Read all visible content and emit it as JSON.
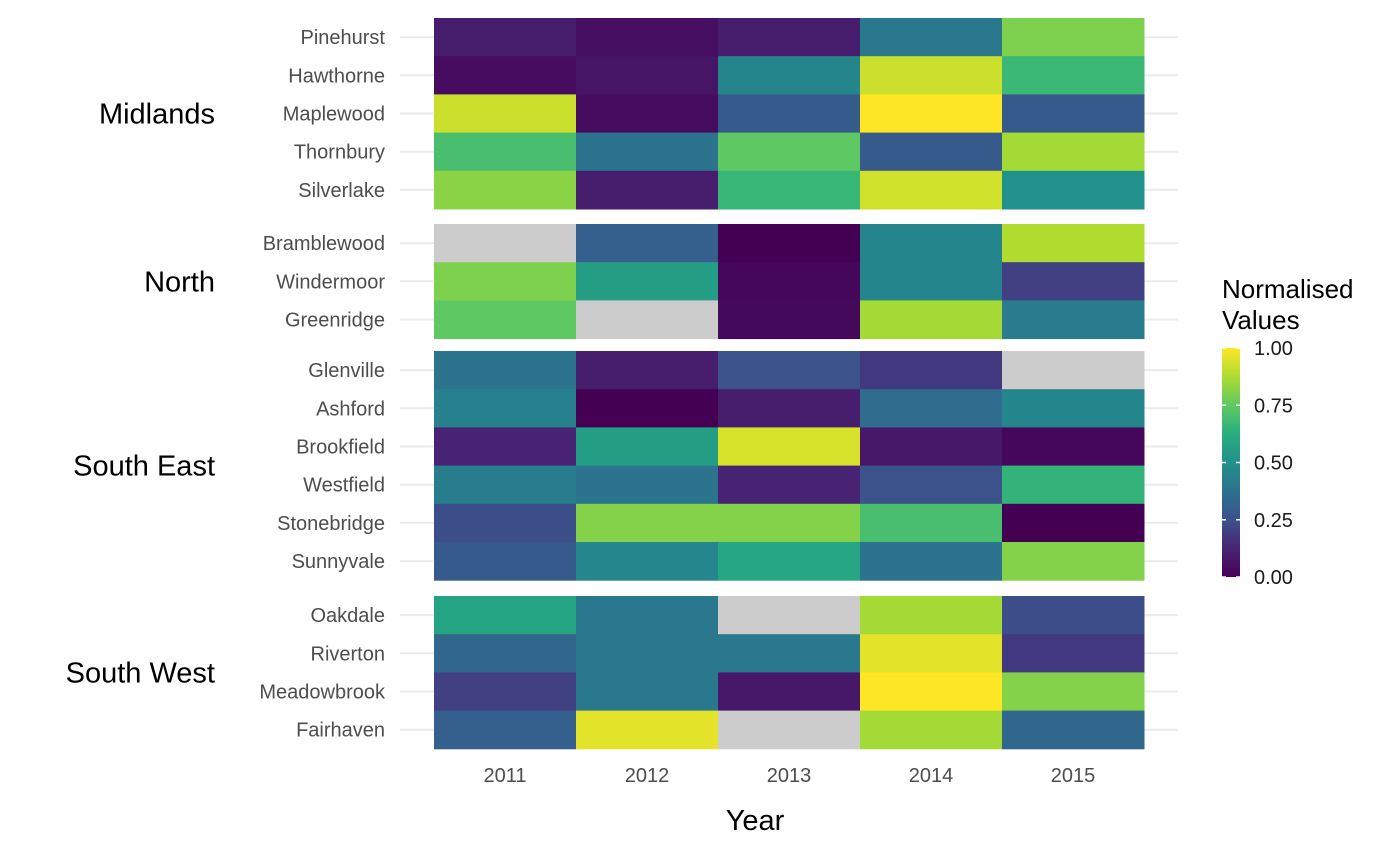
{
  "chart_data": {
    "type": "heatmap",
    "x": [
      "2011",
      "2012",
      "2013",
      "2014",
      "2015"
    ],
    "xlabel": "Year",
    "ylabel": "",
    "colorscale": "viridis",
    "na_color": "#cccccc",
    "legend": {
      "title_lines": [
        "Normalised",
        "Values"
      ],
      "range": [
        0,
        1
      ],
      "ticks": [
        "1.00",
        "0.75",
        "0.50",
        "0.25",
        "0.00"
      ],
      "tick_values": [
        1.0,
        0.75,
        0.5,
        0.25,
        0.0
      ],
      "position": "right"
    },
    "groups": [
      {
        "name": "Midlands",
        "rows": [
          {
            "label": "Pinehurst",
            "values": [
              0.1,
              0.05,
              0.1,
              0.4,
              0.8
            ]
          },
          {
            "label": "Hawthorne",
            "values": [
              0.04,
              0.07,
              0.45,
              0.92,
              0.67
            ]
          },
          {
            "label": "Maplewood",
            "values": [
              0.92,
              0.04,
              0.28,
              1.0,
              0.28
            ]
          },
          {
            "label": "Thornbury",
            "values": [
              0.7,
              0.38,
              0.75,
              0.28,
              0.86
            ]
          },
          {
            "label": "Silverlake",
            "values": [
              0.82,
              0.1,
              0.66,
              0.93,
              0.5
            ]
          }
        ]
      },
      {
        "name": "North",
        "rows": [
          {
            "label": "Bramblewood",
            "values": [
              null,
              0.3,
              0.0,
              0.45,
              0.88
            ]
          },
          {
            "label": "Windermoor",
            "values": [
              0.8,
              0.56,
              0.02,
              0.45,
              0.2
            ]
          },
          {
            "label": "Greenridge",
            "values": [
              0.75,
              null,
              0.03,
              0.86,
              0.41
            ]
          }
        ]
      },
      {
        "name": "South East",
        "rows": [
          {
            "label": "Glenville",
            "values": [
              0.38,
              0.1,
              0.25,
              0.18,
              null
            ]
          },
          {
            "label": "Ashford",
            "values": [
              0.43,
              0.0,
              0.1,
              0.35,
              0.45
            ]
          },
          {
            "label": "Brookfield",
            "values": [
              0.12,
              0.56,
              0.94,
              0.08,
              0.02
            ]
          },
          {
            "label": "Westfield",
            "values": [
              0.42,
              0.38,
              0.12,
              0.25,
              0.65
            ]
          },
          {
            "label": "Stonebridge",
            "values": [
              0.24,
              0.81,
              0.81,
              0.7,
              0.0
            ]
          },
          {
            "label": "Sunnyvale",
            "values": [
              0.28,
              0.46,
              0.59,
              0.38,
              0.81
            ]
          }
        ]
      },
      {
        "name": "South West",
        "rows": [
          {
            "label": "Oakdale",
            "values": [
              0.58,
              0.4,
              null,
              0.86,
              0.24
            ]
          },
          {
            "label": "Riverton",
            "values": [
              0.33,
              0.4,
              0.4,
              0.96,
              0.18
            ]
          },
          {
            "label": "Meadowbrook",
            "values": [
              0.2,
              0.4,
              0.08,
              1.0,
              0.81
            ]
          },
          {
            "label": "Fairhaven",
            "values": [
              0.3,
              0.96,
              null,
              0.86,
              0.33
            ]
          }
        ]
      }
    ]
  }
}
